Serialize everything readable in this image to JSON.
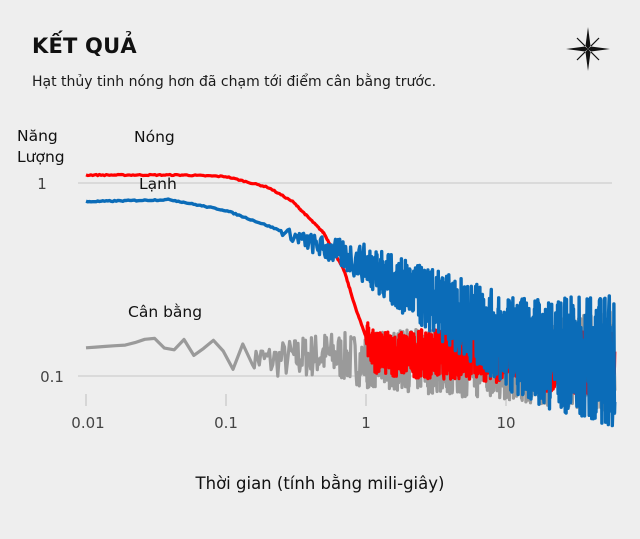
{
  "header": {
    "title": "KẾT QUẢ",
    "subtitle": "Hạt thủy tinh nóng hơn đã chạm tới điểm cân bằng trước.",
    "logo_icon": "compass-star-icon"
  },
  "colors": {
    "background": "#eeeeee",
    "hot": "#ff0000",
    "cold": "#0b6cb8",
    "equilibrium": "#9a9a9a",
    "grid": "#d4d4d4",
    "tick_text": "#444444"
  },
  "chart_data": {
    "type": "line",
    "title": "KẾT QUẢ",
    "subtitle": "Hạt thủy tinh nóng hơn đã chạm tới điểm cân bằng trước.",
    "xlabel": "Thời gian (tính bằng mili-giây)",
    "ylabel": "Năng Lượng",
    "xscale": "log",
    "yscale": "log",
    "xlim": [
      0.01,
      60
    ],
    "ylim": [
      0.07,
      1.2
    ],
    "x_ticks": [
      "0.01",
      "0.1",
      "1",
      "10"
    ],
    "y_ticks": [
      "1",
      "0.1"
    ],
    "grid": "horizontal gridlines at y ticks",
    "legend": "inline labels next to each curve",
    "series": [
      {
        "name": "Nóng",
        "color": "#ff0000",
        "x": [
          0.01,
          0.02,
          0.05,
          0.1,
          0.2,
          0.3,
          0.5,
          0.7,
          0.85,
          1.0,
          1.2,
          2,
          5,
          10,
          20,
          60
        ],
        "values": [
          1.1,
          1.1,
          1.1,
          1.08,
          0.95,
          0.8,
          0.55,
          0.35,
          0.22,
          0.16,
          0.13,
          0.13,
          0.13,
          0.13,
          0.12,
          0.12
        ],
        "note": "Starts highest, drops steeply near 1 ms, then fluctuates around ~0.12-0.13 (noisy)"
      },
      {
        "name": "Lạnh",
        "color": "#0b6cb8",
        "x": [
          0.01,
          0.02,
          0.04,
          0.1,
          0.2,
          0.5,
          1,
          2,
          5,
          10,
          20,
          60
        ],
        "values": [
          0.8,
          0.81,
          0.82,
          0.72,
          0.6,
          0.46,
          0.38,
          0.28,
          0.2,
          0.15,
          0.13,
          0.12
        ],
        "note": "Starts lower, decays gradually, crosses Nóng near ~0.7 ms, becomes noisy and merges near 0.12 after ~10 ms"
      },
      {
        "name": "Cân bằng",
        "color": "#9a9a9a",
        "x": [
          0.01,
          0.02,
          0.03,
          0.04,
          0.05,
          0.06,
          0.08,
          0.1,
          0.2,
          0.5,
          1,
          2,
          5,
          10,
          60
        ],
        "values": [
          0.14,
          0.145,
          0.16,
          0.13,
          0.155,
          0.125,
          0.155,
          0.13,
          0.12,
          0.13,
          0.12,
          0.12,
          0.12,
          0.12,
          0.12
        ],
        "note": "Noisy baseline around 0.12-0.15 throughout"
      }
    ]
  },
  "labels": {
    "ylabel_line1": "Năng",
    "ylabel_line2": "Lượng",
    "hot": "Nóng",
    "cold": "Lạnh",
    "equilibrium": "Cân bằng",
    "xlabel": "Thời gian (tính bằng mili-giây)",
    "x_ticks": [
      "0.01",
      "0.1",
      "1",
      "10"
    ],
    "y_ticks": [
      "1",
      "0.1"
    ]
  }
}
